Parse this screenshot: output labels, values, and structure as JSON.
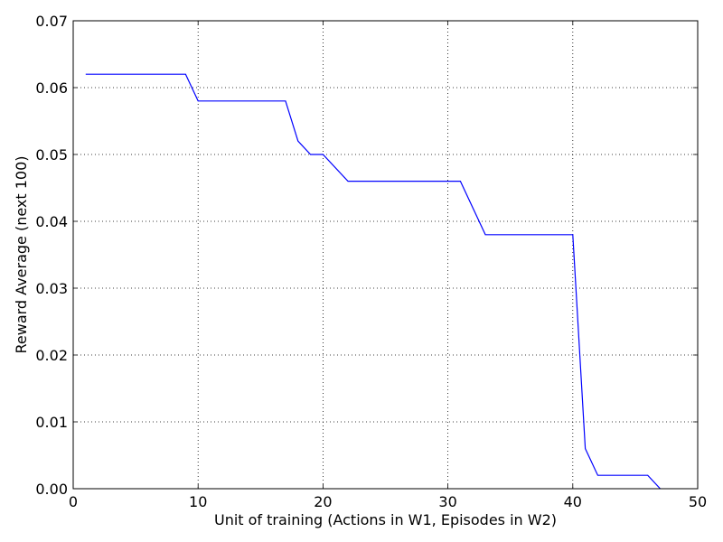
{
  "chart_data": {
    "type": "line",
    "title": "",
    "xlabel": "Unit of training (Actions in W1, Episodes in W2)",
    "ylabel": "Reward Average (next 100)",
    "xlim": [
      0,
      50
    ],
    "ylim": [
      0,
      0.07
    ],
    "xticks": [
      0,
      10,
      20,
      30,
      40,
      50
    ],
    "xtick_labels": [
      "0",
      "10",
      "20",
      "30",
      "40",
      "50"
    ],
    "yticks": [
      0.0,
      0.01,
      0.02,
      0.03,
      0.04,
      0.05,
      0.06,
      0.07
    ],
    "ytick_labels": [
      "0.00",
      "0.01",
      "0.02",
      "0.03",
      "0.04",
      "0.05",
      "0.06",
      "0.07"
    ],
    "grid": true,
    "legend": "none",
    "series": [
      {
        "color": "#0000ff",
        "x": [
          1,
          9,
          10,
          17,
          18,
          19,
          20,
          22,
          31,
          33,
          40,
          41,
          42,
          46,
          47
        ],
        "y": [
          0.062,
          0.062,
          0.058,
          0.058,
          0.052,
          0.05,
          0.05,
          0.046,
          0.046,
          0.038,
          0.038,
          0.006,
          0.002,
          0.002,
          0.0
        ]
      }
    ]
  }
}
